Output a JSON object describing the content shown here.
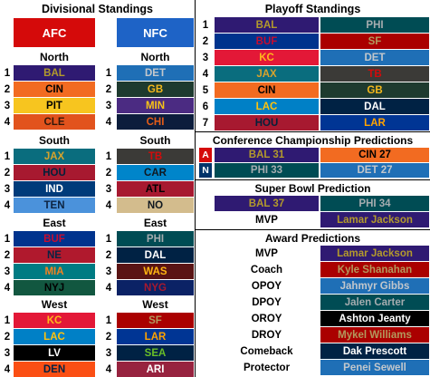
{
  "divisional": {
    "title": "Divisional Standings",
    "afc_label": "AFC",
    "nfc_label": "NFC",
    "divisions": [
      {
        "name": "North",
        "afc": [
          {
            "n": "1",
            "t": "BAL",
            "bg": "#2f1a72",
            "fg": "#b39a2c"
          },
          {
            "n": "2",
            "t": "CIN",
            "bg": "#f26b21",
            "fg": "#000000"
          },
          {
            "n": "3",
            "t": "PIT",
            "bg": "#f7c51f",
            "fg": "#000000"
          },
          {
            "n": "4",
            "t": "CLE",
            "bg": "#e2531d",
            "fg": "#33180b"
          }
        ],
        "nfc": [
          {
            "n": "1",
            "t": "DET",
            "bg": "#1f6fb6",
            "fg": "#c2c7cc"
          },
          {
            "n": "2",
            "t": "GB",
            "bg": "#1e3a2f",
            "fg": "#f4b81c"
          },
          {
            "n": "3",
            "t": "MIN",
            "bg": "#4b2b82",
            "fg": "#f8c417"
          },
          {
            "n": "4",
            "t": "CHI",
            "bg": "#0c1d3c",
            "fg": "#e45c18"
          }
        ]
      },
      {
        "name": "South",
        "afc": [
          {
            "n": "1",
            "t": "JAX",
            "bg": "#0a6d7e",
            "fg": "#d7a32c"
          },
          {
            "n": "2",
            "t": "HOU",
            "bg": "#a71930",
            "fg": "#03213b"
          },
          {
            "n": "3",
            "t": "IND",
            "bg": "#003b7a",
            "fg": "#ffffff"
          },
          {
            "n": "4",
            "t": "TEN",
            "bg": "#4b92db",
            "fg": "#0c2340"
          }
        ],
        "nfc": [
          {
            "n": "1",
            "t": "TB",
            "bg": "#3b3a37",
            "fg": "#d50a0a"
          },
          {
            "n": "2",
            "t": "CAR",
            "bg": "#0085ca",
            "fg": "#101820"
          },
          {
            "n": "3",
            "t": "ATL",
            "bg": "#a71930",
            "fg": "#000000"
          },
          {
            "n": "4",
            "t": "NO",
            "bg": "#d3bc8d",
            "fg": "#101820"
          }
        ]
      },
      {
        "name": "East",
        "afc": [
          {
            "n": "1",
            "t": "BUF",
            "bg": "#00338d",
            "fg": "#c60c30"
          },
          {
            "n": "2",
            "t": "NE",
            "bg": "#b0192d",
            "fg": "#0a2343"
          },
          {
            "n": "3",
            "t": "MIA",
            "bg": "#007b83",
            "fg": "#f58220"
          },
          {
            "n": "4",
            "t": "NYJ",
            "bg": "#125740",
            "fg": "#000000"
          }
        ],
        "nfc": [
          {
            "n": "1",
            "t": "PHI",
            "bg": "#004c54",
            "fg": "#a5acaf"
          },
          {
            "n": "2",
            "t": "DAL",
            "bg": "#002244",
            "fg": "#ffffff"
          },
          {
            "n": "3",
            "t": "WAS",
            "bg": "#5a1414",
            "fg": "#ffb612"
          },
          {
            "n": "4",
            "t": "NYG",
            "bg": "#0b2265",
            "fg": "#a71930"
          }
        ]
      },
      {
        "name": "West",
        "afc": [
          {
            "n": "1",
            "t": "KC",
            "bg": "#e31837",
            "fg": "#ffb81c"
          },
          {
            "n": "2",
            "t": "LAC",
            "bg": "#0080c6",
            "fg": "#ffc20e"
          },
          {
            "n": "3",
            "t": "LV",
            "bg": "#000000",
            "fg": "#ffffff"
          },
          {
            "n": "4",
            "t": "DEN",
            "bg": "#fb4f14",
            "fg": "#002244"
          }
        ],
        "nfc": [
          {
            "n": "1",
            "t": "SF",
            "bg": "#aa0000",
            "fg": "#b3995d"
          },
          {
            "n": "2",
            "t": "LAR",
            "bg": "#003594",
            "fg": "#ffa300"
          },
          {
            "n": "3",
            "t": "SEA",
            "bg": "#002244",
            "fg": "#69be28"
          },
          {
            "n": "4",
            "t": "ARI",
            "bg": "#97233f",
            "fg": "#ffffff"
          }
        ]
      }
    ]
  },
  "playoff": {
    "title": "Playoff Standings",
    "rows": [
      {
        "n": "1",
        "afc": {
          "t": "BAL",
          "bg": "#2f1a72",
          "fg": "#b39a2c"
        },
        "nfc": {
          "t": "PHI",
          "bg": "#004c54",
          "fg": "#a5acaf"
        }
      },
      {
        "n": "2",
        "afc": {
          "t": "BUF",
          "bg": "#00338d",
          "fg": "#c60c30"
        },
        "nfc": {
          "t": "SF",
          "bg": "#aa0000",
          "fg": "#b3995d"
        }
      },
      {
        "n": "3",
        "afc": {
          "t": "KC",
          "bg": "#e31837",
          "fg": "#ffb81c"
        },
        "nfc": {
          "t": "DET",
          "bg": "#1f6fb6",
          "fg": "#c2c7cc"
        }
      },
      {
        "n": "4",
        "afc": {
          "t": "JAX",
          "bg": "#0a6d7e",
          "fg": "#d7a32c"
        },
        "nfc": {
          "t": "TB",
          "bg": "#3b3a37",
          "fg": "#d50a0a"
        }
      },
      {
        "n": "5",
        "afc": {
          "t": "CIN",
          "bg": "#f26b21",
          "fg": "#000000"
        },
        "nfc": {
          "t": "GB",
          "bg": "#1e3a2f",
          "fg": "#f4b81c"
        }
      },
      {
        "n": "6",
        "afc": {
          "t": "LAC",
          "bg": "#0080c6",
          "fg": "#ffc20e"
        },
        "nfc": {
          "t": "DAL",
          "bg": "#002244",
          "fg": "#ffffff"
        }
      },
      {
        "n": "7",
        "afc": {
          "t": "HOU",
          "bg": "#a71930",
          "fg": "#03213b"
        },
        "nfc": {
          "t": "LAR",
          "bg": "#003594",
          "fg": "#ffa300"
        }
      }
    ]
  },
  "conference_championship": {
    "title": "Conference Championship Predictions",
    "rows": [
      {
        "tag": "A",
        "tag_bg": "#d50a0a",
        "left": {
          "t": "BAL 31",
          "bg": "#2f1a72",
          "fg": "#b39a2c"
        },
        "right": {
          "t": "CIN 27",
          "bg": "#f26b21",
          "fg": "#000000"
        }
      },
      {
        "tag": "N",
        "tag_bg": "#013369",
        "left": {
          "t": "PHI 33",
          "bg": "#004c54",
          "fg": "#a5acaf"
        },
        "right": {
          "t": "DET 27",
          "bg": "#1f6fb6",
          "fg": "#c2c7cc"
        }
      }
    ]
  },
  "super_bowl": {
    "title": "Super Bowl Prediction",
    "left": {
      "t": "BAL 37",
      "bg": "#2f1a72",
      "fg": "#b39a2c"
    },
    "right": {
      "t": "PHI 34",
      "bg": "#004c54",
      "fg": "#a5acaf"
    },
    "mvp_label": "MVP",
    "mvp": {
      "t": "Lamar Jackson",
      "bg": "#2f1a72",
      "fg": "#b39a2c"
    }
  },
  "awards": {
    "title": "Award Predictions",
    "rows": [
      {
        "label": "MVP",
        "t": "Lamar Jackson",
        "bg": "#2f1a72",
        "fg": "#b39a2c"
      },
      {
        "label": "Coach",
        "t": "Kyle Shanahan",
        "bg": "#aa0000",
        "fg": "#b3995d"
      },
      {
        "label": "OPOY",
        "t": "Jahmyr Gibbs",
        "bg": "#1f6fb6",
        "fg": "#c2c7cc"
      },
      {
        "label": "DPOY",
        "t": "Jalen Carter",
        "bg": "#004c54",
        "fg": "#a5acaf"
      },
      {
        "label": "OROY",
        "t": "Ashton Jeanty",
        "bg": "#000000",
        "fg": "#ffffff"
      },
      {
        "label": "DROY",
        "t": "Mykel Williams",
        "bg": "#aa0000",
        "fg": "#b3995d"
      },
      {
        "label": "Comeback",
        "t": "Dak Prescott",
        "bg": "#002244",
        "fg": "#ffffff"
      },
      {
        "label": "Protector",
        "t": "Penei Sewell",
        "bg": "#1f6fb6",
        "fg": "#c2c7cc"
      }
    ]
  }
}
